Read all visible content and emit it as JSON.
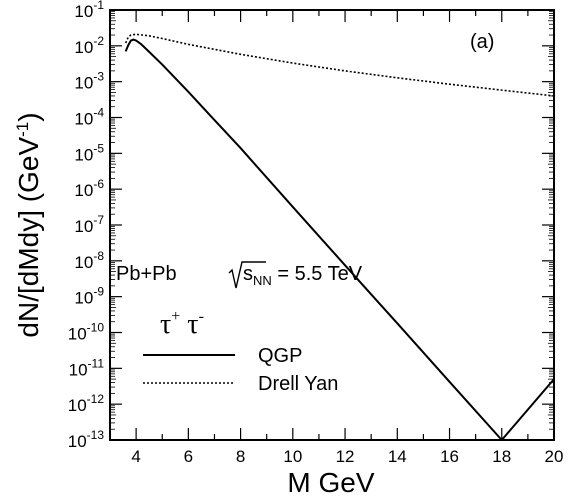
{
  "chart_data": {
    "type": "line",
    "panel_label": "(a)",
    "xlabel": "M GeV",
    "ylabel": "dN/[dMdy] (GeV⁻¹)",
    "ylabel_parts": {
      "main": "dN/[dMdy] (GeV",
      "sup": "-1",
      "close": ")"
    },
    "xlim": [
      3,
      20
    ],
    "ylim": [
      1e-13,
      0.1
    ],
    "yscale": "log",
    "grid": false,
    "x_ticks": [
      4,
      6,
      8,
      10,
      12,
      14,
      16,
      18,
      20
    ],
    "y_tick_exponents": [
      -13,
      -12,
      -11,
      -10,
      -9,
      -8,
      -7,
      -6,
      -5,
      -4,
      -3,
      -2,
      -1
    ],
    "y_tick_base": "10",
    "annotation": {
      "prefix": "Pb+Pb ",
      "sqrt_s": "s",
      "sqrt_sub": "NN",
      "suffix": " = 5.5 TeV"
    },
    "legend_title": {
      "base": "τ",
      "sup1": "+",
      "base2": " τ",
      "sup2": "-"
    },
    "series": [
      {
        "name": "QGP",
        "style": "solid",
        "color": "#000000",
        "points": [
          [
            3.6,
            0.007
          ],
          [
            3.7,
            0.0105
          ],
          [
            3.8,
            0.014
          ],
          [
            3.9,
            0.015
          ],
          [
            4.0,
            0.014
          ],
          [
            4.2,
            0.011
          ],
          [
            4.5,
            0.0068
          ],
          [
            5,
            0.003
          ],
          [
            5.5,
            0.00125
          ],
          [
            6,
            0.00052
          ],
          [
            7,
            8.5e-05
          ],
          [
            8,
            1.4e-05
          ],
          [
            10,
            3.2e-07
          ],
          [
            12,
            7.5e-09
          ],
          [
            14,
            1.8e-10
          ],
          [
            16,
            4.2e-12
          ],
          [
            18,
            1e-13
          ],
          [
            20,
            5e-12
          ]
        ]
      },
      {
        "name": "Drell Yan",
        "style": "dotted",
        "color": "#000000",
        "points": [
          [
            3.6,
            0.012
          ],
          [
            3.7,
            0.0175
          ],
          [
            3.8,
            0.02
          ],
          [
            4.0,
            0.021
          ],
          [
            4.5,
            0.019
          ],
          [
            5,
            0.016
          ],
          [
            6,
            0.011
          ],
          [
            8,
            0.0058
          ],
          [
            10,
            0.0033
          ],
          [
            12,
            0.002
          ],
          [
            14,
            0.00128
          ],
          [
            16,
            0.00085
          ],
          [
            18,
            0.00058
          ],
          [
            20,
            0.0004
          ]
        ]
      }
    ]
  }
}
